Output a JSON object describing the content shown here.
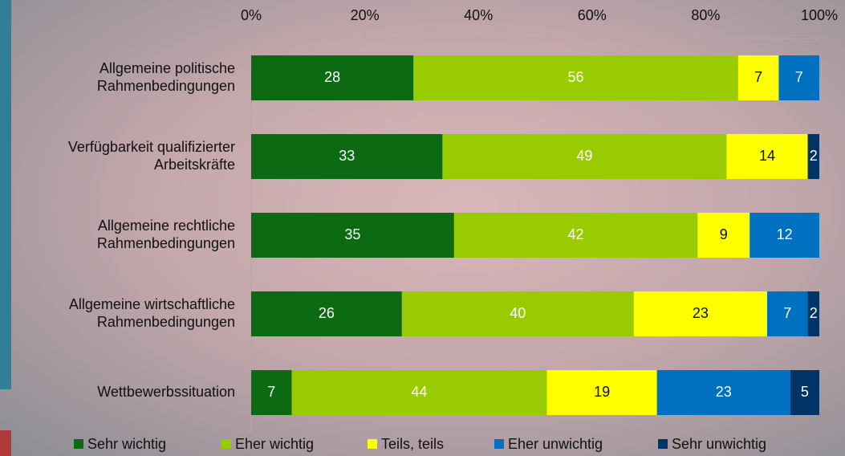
{
  "chart_data": {
    "type": "stacked_bar_horizontal",
    "stacked": "percent",
    "categories": [
      "Allgemeine politische\nRahmenbedingungen",
      "Verfügbarkeit qualifizierter\nArbeitskräfte",
      "Allgemeine rechtliche\nRahmenbedingungen",
      "Allgemeine wirtschaftliche\nRahmenbedingungen",
      "Wettbewerbssituation"
    ],
    "series": [
      {
        "name": "Sehr wichtig",
        "color": "#0b6a12",
        "values": [
          28,
          33,
          35,
          26,
          7
        ]
      },
      {
        "name": "Eher wichtig",
        "color": "#99cc00",
        "values": [
          56,
          49,
          42,
          40,
          44
        ]
      },
      {
        "name": "Teils, teils",
        "color": "#ffff00",
        "values": [
          7,
          14,
          9,
          23,
          19
        ]
      },
      {
        "name": "Eher unwichtig",
        "color": "#0070c0",
        "values": [
          7,
          null,
          12,
          7,
          23
        ]
      },
      {
        "name": "Sehr unwichtig",
        "color": "#003366",
        "values": [
          null,
          2,
          null,
          2,
          5
        ]
      }
    ],
    "xlim": [
      0,
      100
    ],
    "xticks": [
      {
        "value": 0,
        "label": "0%"
      },
      {
        "value": 20,
        "label": "20%"
      },
      {
        "value": 40,
        "label": "40%"
      },
      {
        "value": 60,
        "label": "60%"
      },
      {
        "value": 80,
        "label": "80%"
      },
      {
        "value": 100,
        "label": "100%"
      }
    ],
    "legend": "bottom"
  }
}
